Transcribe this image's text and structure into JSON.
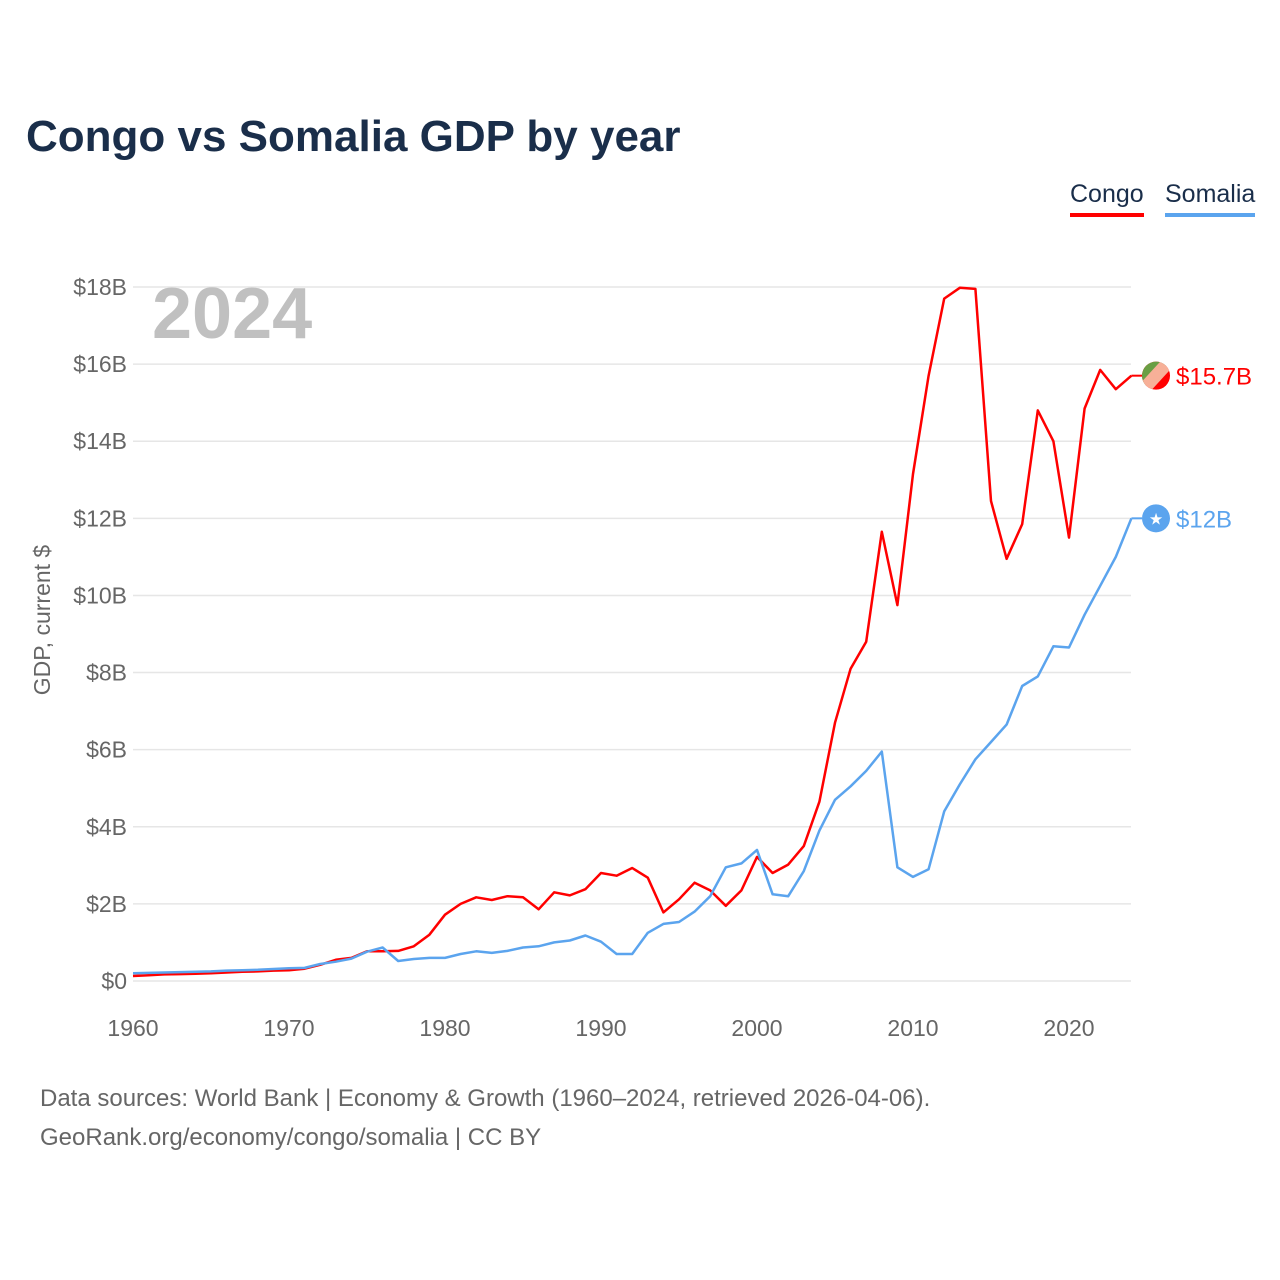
{
  "title": "Congo vs Somalia GDP by year",
  "year_label": "2024",
  "footer": {
    "line1": "Data sources: World Bank | Economy & Growth (1960–2024, retrieved 2026-04-06).",
    "line2": "GeoRank.org/economy/congo/somalia | CC BY"
  },
  "chart_data": {
    "type": "line",
    "title": "Congo vs Somalia GDP by year",
    "xlabel": "",
    "ylabel": "GDP, current $",
    "xlim": [
      1960,
      2024
    ],
    "ylim": [
      0,
      18
    ],
    "y_unit": "billion USD",
    "grid": true,
    "legend": "top-right",
    "x_ticks": [
      1960,
      1970,
      1980,
      1990,
      2000,
      2010,
      2020
    ],
    "x_tick_labels": [
      "1960",
      "1970",
      "1980",
      "1990",
      "2000",
      "2010",
      "2020"
    ],
    "y_ticks": [
      0,
      2,
      4,
      6,
      8,
      10,
      12,
      14,
      16,
      18
    ],
    "y_tick_labels": [
      "$0",
      "$2B",
      "$4B",
      "$6B",
      "$8B",
      "$10B",
      "$12B",
      "$14B",
      "$16B",
      "$18B"
    ],
    "series": [
      {
        "name": "Congo",
        "color": "#ff0000",
        "end_label": "$15.7B",
        "icon": "congo-flag-icon",
        "values": [
          0.13,
          0.15,
          0.17,
          0.18,
          0.19,
          0.2,
          0.22,
          0.24,
          0.25,
          0.27,
          0.28,
          0.32,
          0.42,
          0.55,
          0.6,
          0.77,
          0.77,
          0.78,
          0.9,
          1.2,
          1.72,
          2.0,
          2.17,
          2.1,
          2.2,
          2.17,
          1.86,
          2.3,
          2.22,
          2.38,
          2.8,
          2.73,
          2.93,
          2.68,
          1.78,
          2.12,
          2.55,
          2.35,
          1.95,
          2.35,
          3.22,
          2.8,
          3.02,
          3.5,
          4.65,
          6.7,
          8.1,
          8.8,
          11.65,
          9.75,
          13.15,
          15.7,
          17.7,
          17.98,
          17.95,
          12.45,
          10.95,
          11.85,
          14.8,
          14.0,
          11.5,
          14.85,
          15.85,
          15.35,
          15.7
        ]
      },
      {
        "name": "Somalia",
        "color": "#5ba4ee",
        "end_label": "$12B",
        "icon": "somalia-flag-icon",
        "values": [
          0.2,
          0.21,
          0.22,
          0.23,
          0.24,
          0.25,
          0.27,
          0.28,
          0.29,
          0.31,
          0.33,
          0.34,
          0.44,
          0.5,
          0.58,
          0.76,
          0.87,
          0.52,
          0.57,
          0.6,
          0.6,
          0.7,
          0.77,
          0.73,
          0.78,
          0.87,
          0.9,
          1.0,
          1.05,
          1.18,
          1.02,
          0.7,
          0.7,
          1.25,
          1.48,
          1.53,
          1.8,
          2.2,
          2.95,
          3.05,
          3.4,
          2.25,
          2.2,
          2.85,
          3.9,
          4.7,
          5.05,
          5.45,
          5.95,
          2.95,
          2.7,
          2.9,
          4.4,
          5.1,
          5.75,
          6.2,
          6.65,
          7.65,
          7.9,
          8.68,
          8.65,
          9.5,
          10.25,
          11.0,
          12.0
        ]
      }
    ]
  }
}
